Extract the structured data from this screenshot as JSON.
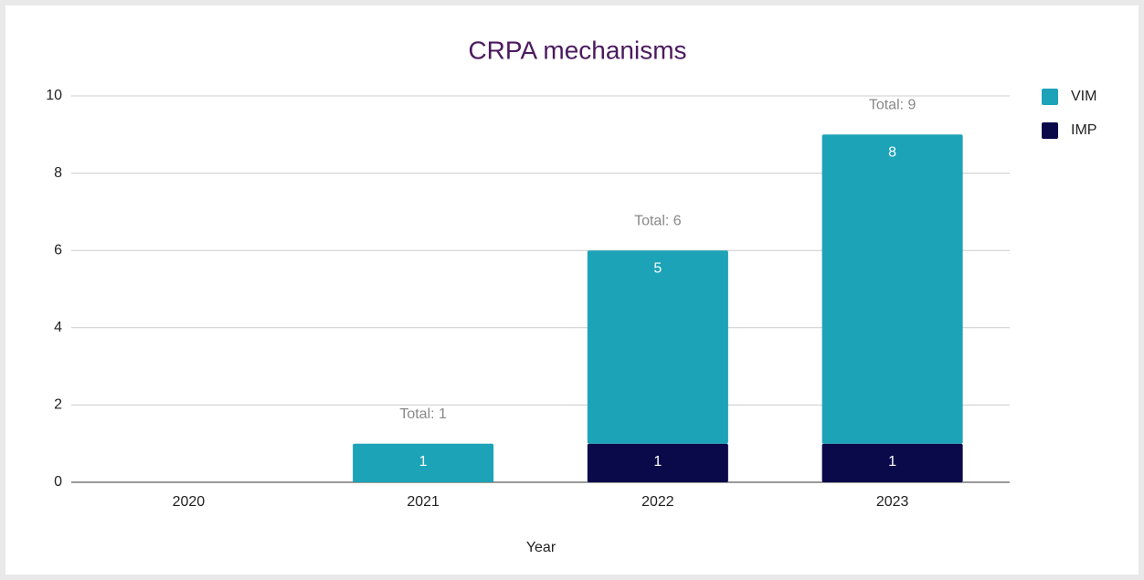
{
  "chart_data": {
    "type": "stacked_bar",
    "title": "CRPA mechanisms",
    "x_label": "Year",
    "categories": [
      "2020",
      "2021",
      "2022",
      "2023"
    ],
    "series": [
      {
        "name": "VIM",
        "color": "#1ca3b8",
        "values": [
          null,
          1,
          5,
          8
        ]
      },
      {
        "name": "IMP",
        "color": "#0a0a4a",
        "values": [
          null,
          null,
          1,
          1
        ]
      }
    ],
    "totals": [
      null,
      1,
      6,
      9
    ],
    "total_labels": [
      null,
      "Total:  1",
      "Total:  6",
      "Total:  9"
    ],
    "ylim": [
      0,
      10
    ],
    "yticks": [
      0,
      2,
      4,
      6,
      8,
      10
    ],
    "grid": true,
    "legend": "top-right"
  }
}
